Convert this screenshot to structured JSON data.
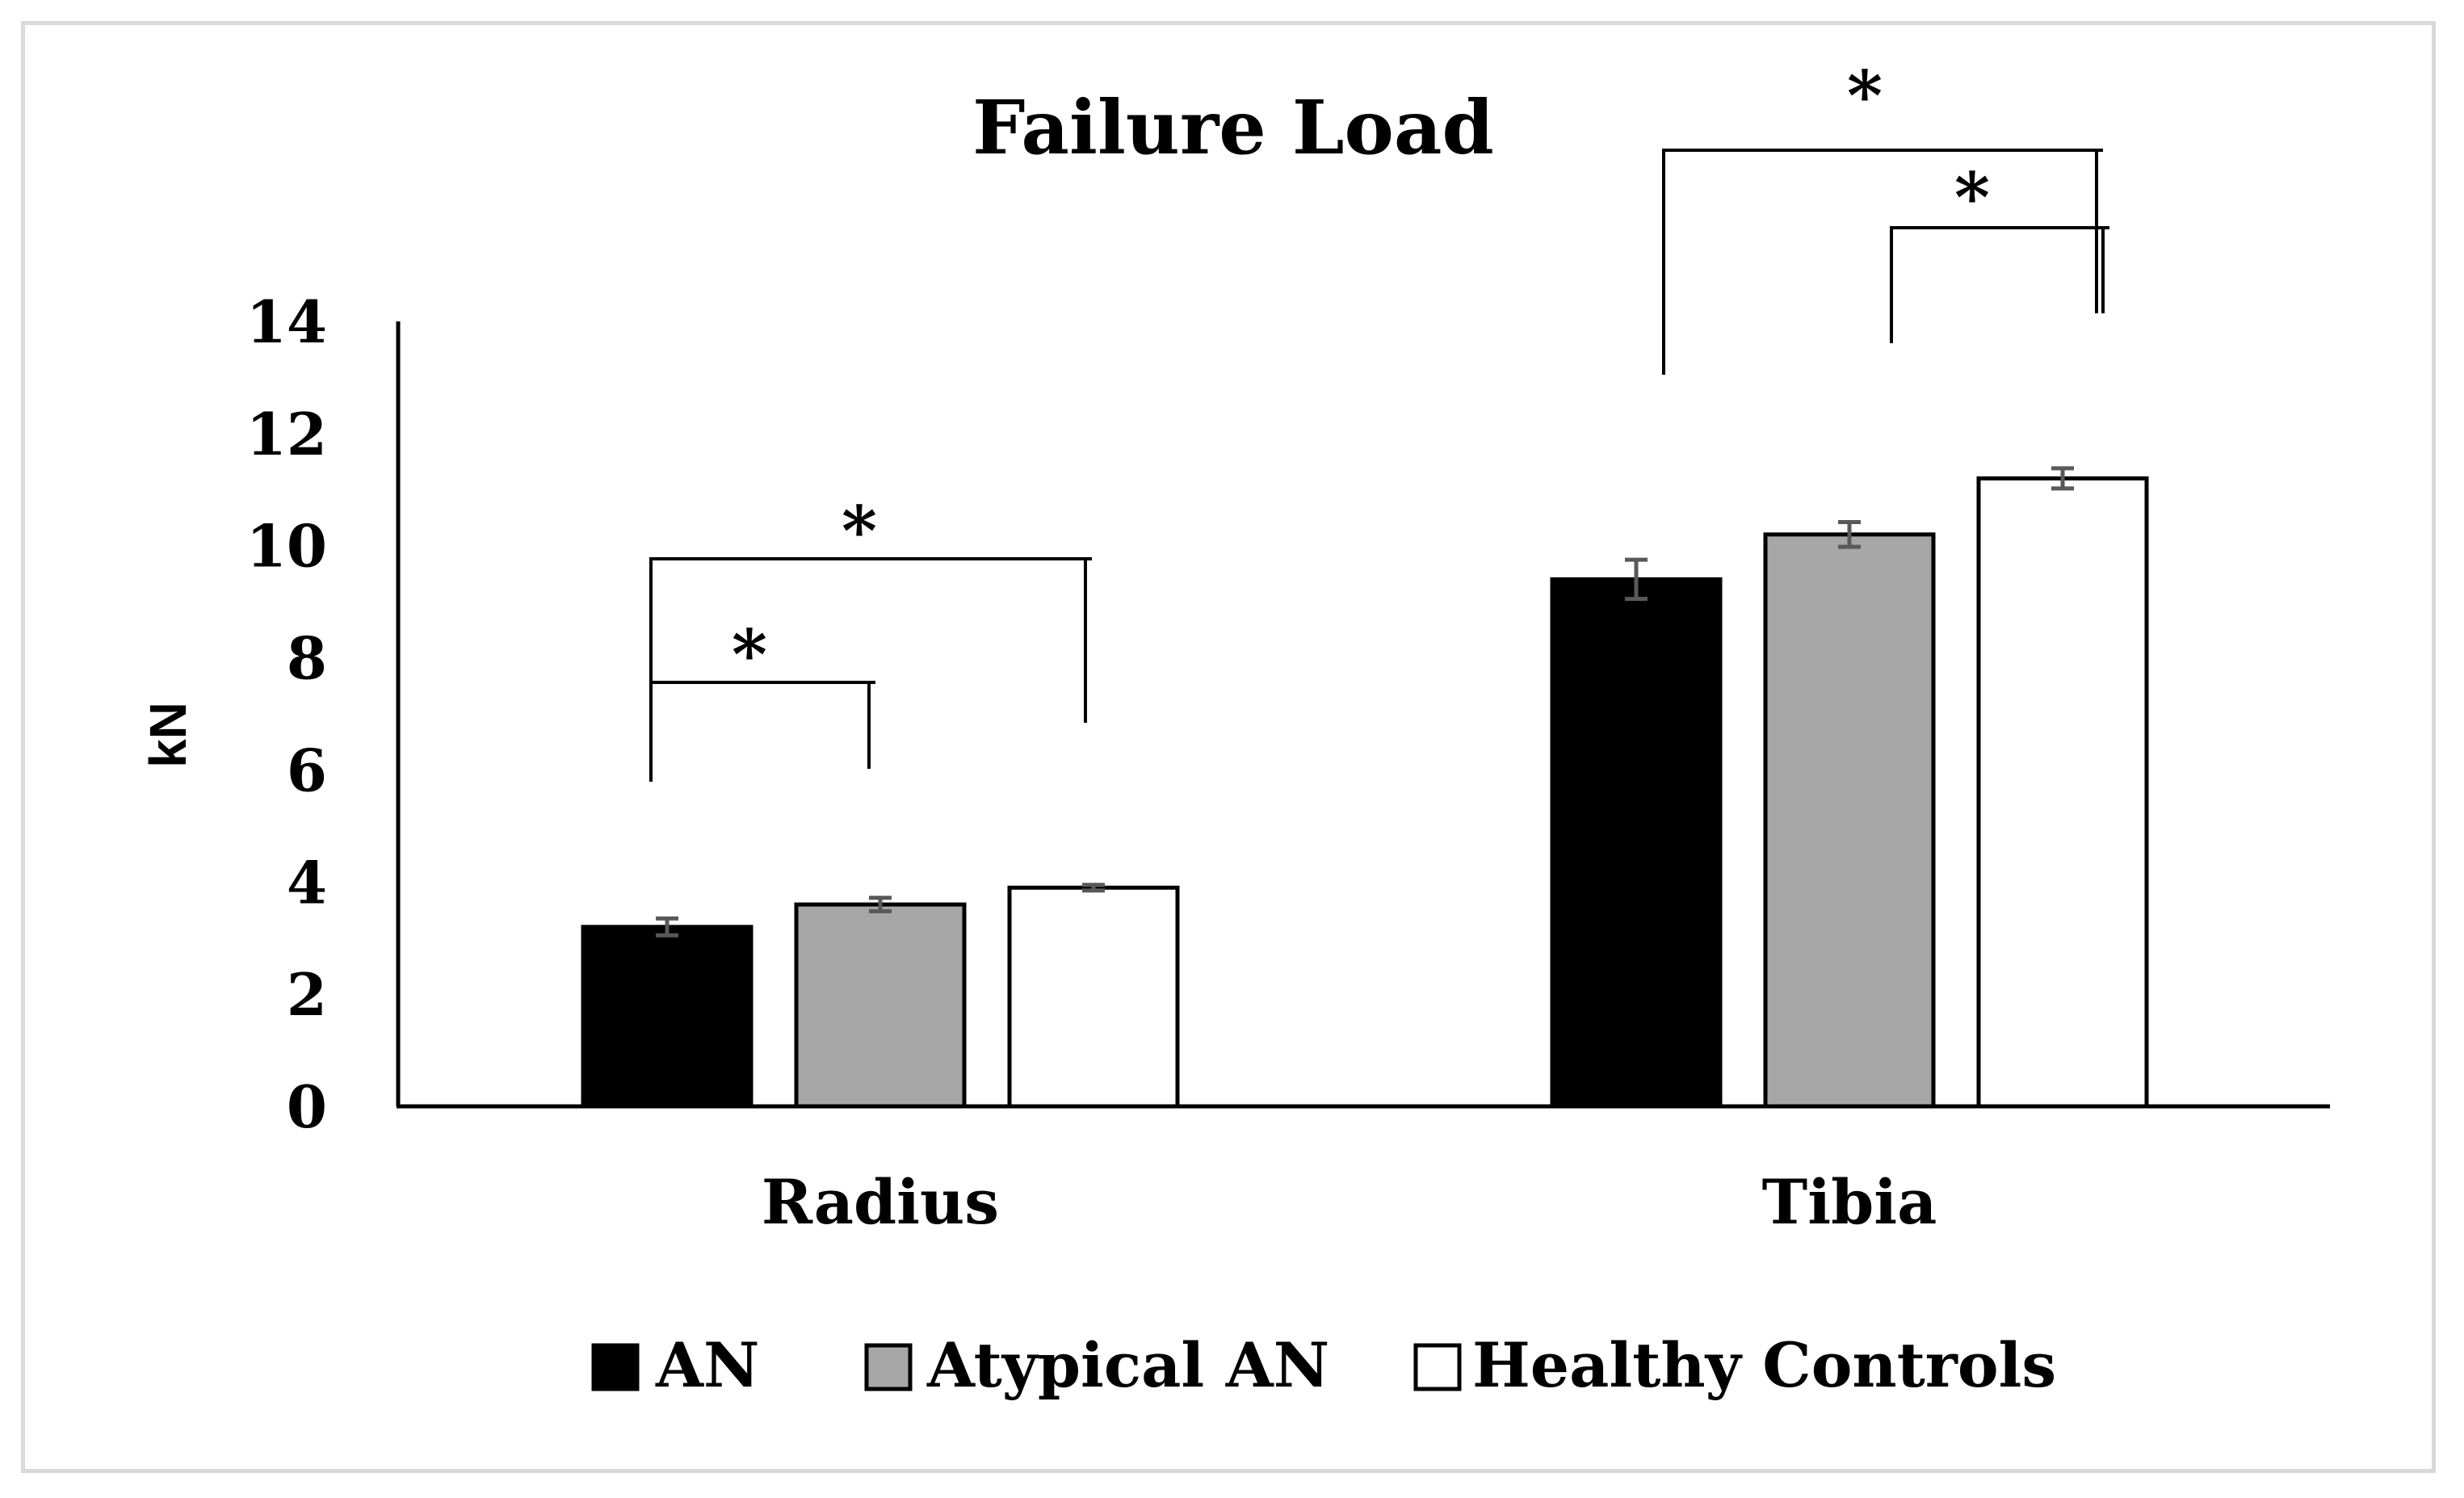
{
  "chart_data": {
    "type": "bar",
    "title": "Failure Load",
    "xlabel": "",
    "ylabel": "kN",
    "ylim": [
      0,
      14
    ],
    "yticks": [
      "0",
      "2",
      "4",
      "6",
      "8",
      "10",
      "12",
      "14"
    ],
    "categories": [
      "Radius",
      "Tibia"
    ],
    "series": [
      {
        "name": "AN",
        "color": "#000000",
        "values": [
          3.2,
          9.4
        ],
        "errors": [
          0.15,
          0.35
        ]
      },
      {
        "name": "Atypical AN",
        "color": "#a6a6a6",
        "values": [
          3.6,
          10.2
        ],
        "errors": [
          0.12,
          0.22
        ]
      },
      {
        "name": "Healthy Controls",
        "color": "#ffffff",
        "values": [
          3.9,
          11.2
        ],
        "errors": [
          0.05,
          0.18
        ]
      }
    ],
    "legend": {
      "position": "bottom"
    },
    "significance": [
      {
        "category": "Radius",
        "from": "AN",
        "to": "Atypical AN",
        "label": "*"
      },
      {
        "category": "Radius",
        "from": "AN",
        "to": "Healthy Controls",
        "label": "*"
      },
      {
        "category": "Tibia",
        "from": "AN",
        "to": "Healthy Controls",
        "label": "*"
      },
      {
        "category": "Tibia",
        "from": "Atypical AN",
        "to": "Healthy Controls",
        "label": "*"
      }
    ]
  }
}
